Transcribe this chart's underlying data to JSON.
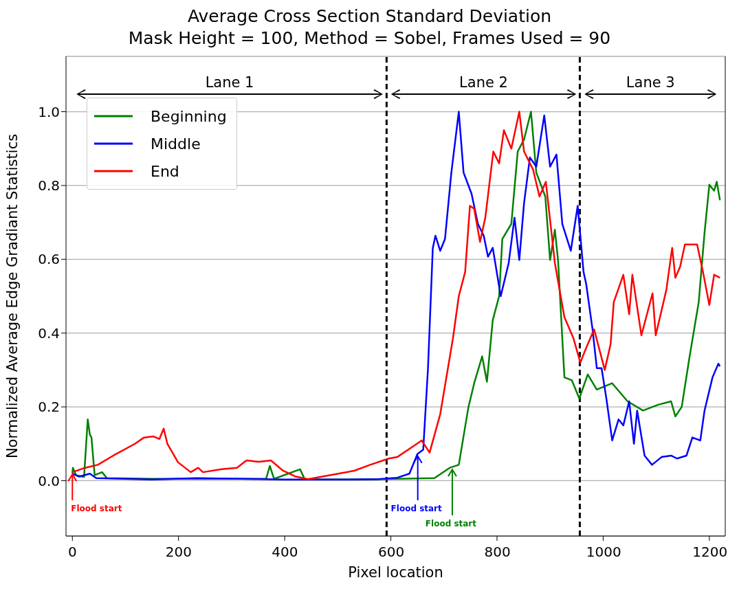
{
  "chart_data": {
    "type": "line",
    "title": "Average Cross Section Standard Deviation",
    "subtitle": "Mask Height = 100,  Method = Sobel, Frames Used = 90",
    "xlabel": "Pixel location",
    "ylabel": "Normalized Average Edge Gradiant Statistics",
    "xlim": [
      -12,
      1230
    ],
    "ylim": [
      -0.15,
      1.15
    ],
    "xticks": [
      0,
      200,
      400,
      600,
      800,
      1000,
      1200
    ],
    "yticks": [
      {
        "value": 0,
        "label": "0.0"
      },
      {
        "value": 0.2,
        "label": "0.2"
      },
      {
        "value": 0.4,
        "label": "0.4"
      },
      {
        "value": 0.6,
        "label": "0.6"
      },
      {
        "value": 0.8,
        "label": "0.8"
      },
      {
        "value": 1,
        "label": "1.0"
      }
    ],
    "grid": "y",
    "legend": "top left",
    "series": [
      {
        "name": "Beginning",
        "color": "#008000",
        "x": [
          0,
          1,
          7,
          22,
          29,
          33,
          36,
          42,
          56,
          65,
          150,
          300,
          365,
          372,
          380,
          429,
          438,
          500,
          577,
          682,
          711,
          728,
          746,
          757,
          772,
          781,
          792,
          804,
          810,
          827,
          839,
          851,
          864,
          874,
          891,
          900,
          909,
          915,
          927,
          941,
          955,
          971,
          988,
          1017,
          1046,
          1075,
          1104,
          1128,
          1136,
          1148,
          1162,
          1180,
          1191,
          1200,
          1209,
          1214,
          1220
        ],
        "values": [
          0.02,
          0.035,
          0.015,
          0.01,
          0.166,
          0.125,
          0.117,
          0.015,
          0.023,
          0.007,
          0.005,
          0.005,
          0.005,
          0.04,
          0.005,
          0.031,
          0.003,
          0.003,
          0.004,
          0.007,
          0.035,
          0.043,
          0.198,
          0.264,
          0.337,
          0.268,
          0.435,
          0.5,
          0.655,
          0.696,
          0.892,
          0.925,
          1.0,
          0.835,
          0.77,
          0.598,
          0.68,
          0.598,
          0.28,
          0.272,
          0.223,
          0.288,
          0.247,
          0.264,
          0.215,
          0.19,
          0.206,
          0.215,
          0.174,
          0.2,
          0.329,
          0.484,
          0.672,
          0.802,
          0.786,
          0.81,
          0.76
        ]
      },
      {
        "name": "Middle",
        "color": "#0000ff",
        "x": [
          0,
          13,
          33,
          45,
          150,
          234,
          400,
          500,
          577,
          612,
          635,
          650,
          661,
          670,
          679,
          684,
          693,
          702,
          714,
          728,
          737,
          752,
          764,
          775,
          783,
          792,
          807,
          822,
          833,
          842,
          851,
          862,
          874,
          889,
          900,
          912,
          923,
          939,
          952,
          963,
          968,
          980,
          988,
          997,
          1006,
          1017,
          1029,
          1038,
          1049,
          1058,
          1064,
          1078,
          1092,
          1110,
          1128,
          1139,
          1157,
          1168,
          1183,
          1191,
          1206,
          1217,
          1220
        ],
        "values": [
          0.019,
          0.011,
          0.019,
          0.007,
          0.003,
          0.007,
          0.003,
          0.003,
          0.004,
          0.008,
          0.019,
          0.072,
          0.084,
          0.305,
          0.63,
          0.664,
          0.623,
          0.655,
          0.835,
          1.0,
          0.835,
          0.778,
          0.696,
          0.664,
          0.607,
          0.631,
          0.5,
          0.59,
          0.713,
          0.598,
          0.753,
          0.876,
          0.851,
          0.99,
          0.851,
          0.884,
          0.696,
          0.623,
          0.745,
          0.566,
          0.533,
          0.41,
          0.305,
          0.305,
          0.223,
          0.109,
          0.166,
          0.15,
          0.215,
          0.1,
          0.19,
          0.068,
          0.043,
          0.064,
          0.068,
          0.06,
          0.068,
          0.117,
          0.109,
          0.19,
          0.28,
          0.317,
          0.31
        ]
      },
      {
        "name": "End",
        "color": "#ff0000",
        "x": [
          0,
          24,
          48,
          77,
          118,
          135,
          153,
          164,
          172,
          179,
          199,
          223,
          237,
          246,
          281,
          310,
          328,
          351,
          374,
          397,
          421,
          444,
          485,
          531,
          561,
          596,
          612,
          641,
          658,
          673,
          693,
          717,
          728,
          740,
          749,
          757,
          768,
          778,
          793,
          804,
          813,
          827,
          842,
          851,
          868,
          880,
          892,
          909,
          927,
          944,
          957,
          968,
          983,
          1003,
          1014,
          1020,
          1038,
          1049,
          1055,
          1072,
          1093,
          1099,
          1119,
          1130,
          1136,
          1145,
          1154,
          1177,
          1188,
          1200,
          1209,
          1220
        ],
        "values": [
          0.023,
          0.035,
          0.043,
          0.068,
          0.1,
          0.117,
          0.12,
          0.113,
          0.141,
          0.1,
          0.05,
          0.023,
          0.035,
          0.023,
          0.031,
          0.035,
          0.055,
          0.051,
          0.055,
          0.027,
          0.011,
          0.004,
          0.015,
          0.027,
          0.043,
          0.06,
          0.064,
          0.092,
          0.109,
          0.076,
          0.18,
          0.386,
          0.5,
          0.566,
          0.745,
          0.737,
          0.647,
          0.713,
          0.892,
          0.86,
          0.95,
          0.9,
          1.0,
          0.892,
          0.843,
          0.77,
          0.81,
          0.59,
          0.443,
          0.386,
          0.32,
          0.36,
          0.41,
          0.3,
          0.37,
          0.484,
          0.558,
          0.451,
          0.558,
          0.394,
          0.508,
          0.394,
          0.517,
          0.631,
          0.55,
          0.58,
          0.64,
          0.64,
          0.566,
          0.476,
          0.558,
          0.55
        ]
      }
    ],
    "ref_lines": [
      {
        "axis": "x",
        "value": 592,
        "color": "#000000",
        "line_style": "dashed"
      },
      {
        "axis": "x",
        "value": 956,
        "color": "#000000",
        "line_style": "dashed"
      }
    ],
    "annotations": [
      "Lane 1",
      "Lane 2",
      "Lane 3",
      {
        "text": "Flood start",
        "x": 715,
        "y": 0.036
      },
      {
        "text": "Flood start",
        "x": 650,
        "y": 0.072
      },
      {
        "text": "Flood start",
        "x": 0,
        "y": 0.023
      }
    ]
  }
}
